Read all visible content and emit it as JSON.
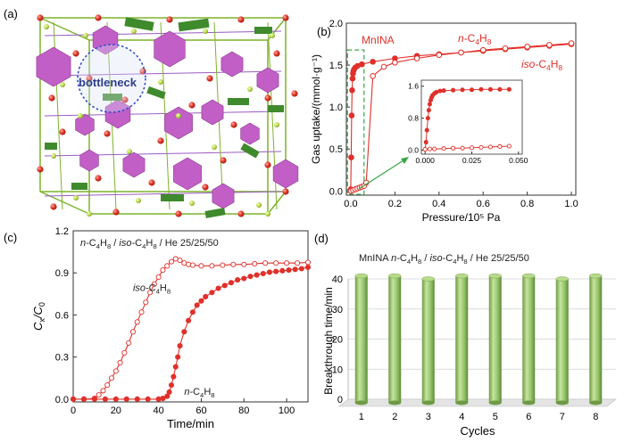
{
  "panels": {
    "a": {
      "label": "(a)",
      "annotation": "bottleneck",
      "colors": {
        "hexagon": "#c25fc6",
        "green_plate": "#3f8a2c",
        "node": "#b8d94a",
        "oxygen": "#e23a2a",
        "circle": "#2b4fc9"
      }
    },
    "b": {
      "label": "(b)"
    },
    "c": {
      "label": "(c)"
    },
    "d": {
      "label": "(d)"
    }
  },
  "chart_data": [
    {
      "id": "b",
      "type": "line",
      "xlabel": "Pressure/10⁵ Pa",
      "ylabel": "Gas uptake/(mmol·g⁻¹)",
      "xlim": [
        -0.02,
        1.02
      ],
      "ylim": [
        -0.05,
        2.0
      ],
      "xticks": [
        "0.0",
        "0.2",
        "0.4",
        "0.6",
        "0.8",
        "1.0"
      ],
      "yticks": [
        "0.0",
        "0.5",
        "1.0",
        "1.5",
        "2.0"
      ],
      "title_label": "MnINA",
      "series": [
        {
          "name": "n-C4H8",
          "color": "#e0302a",
          "marker": "filled",
          "x": [
            0.0,
            0.002,
            0.004,
            0.006,
            0.008,
            0.01,
            0.012,
            0.015,
            0.02,
            0.03,
            0.05,
            0.1,
            0.2,
            0.3,
            0.4,
            0.5,
            0.6,
            0.7,
            0.8,
            0.9,
            1.0
          ],
          "y": [
            0.02,
            0.4,
            0.9,
            1.2,
            1.34,
            1.4,
            1.43,
            1.45,
            1.47,
            1.49,
            1.51,
            1.54,
            1.58,
            1.61,
            1.63,
            1.65,
            1.67,
            1.69,
            1.71,
            1.73,
            1.75
          ]
        },
        {
          "name": "iso-C4H8",
          "color": "#e0302a",
          "marker": "open",
          "x": [
            0.0,
            0.01,
            0.02,
            0.03,
            0.04,
            0.05,
            0.06,
            0.07,
            0.1,
            0.15,
            0.2,
            0.3,
            0.4,
            0.5,
            0.6,
            0.7,
            0.8,
            0.9,
            1.0
          ],
          "y": [
            0.0,
            0.01,
            0.02,
            0.03,
            0.04,
            0.05,
            0.06,
            0.1,
            1.37,
            1.48,
            1.53,
            1.58,
            1.62,
            1.65,
            1.68,
            1.7,
            1.72,
            1.74,
            1.76
          ]
        }
      ],
      "inset": {
        "xlim": [
          -0.002,
          0.052
        ],
        "ylim": [
          -0.1,
          1.75
        ],
        "xticks": [
          "0.000",
          "0.025",
          "0.050"
        ],
        "yticks": [
          "0.0",
          "0.8",
          "1.6"
        ],
        "series": [
          {
            "name": "n-C4H8",
            "marker": "filled",
            "x": [
              0.0,
              0.0005,
              0.001,
              0.0015,
              0.002,
              0.0025,
              0.003,
              0.0035,
              0.004,
              0.005,
              0.006,
              0.008,
              0.01,
              0.015,
              0.02,
              0.025,
              0.03,
              0.035,
              0.04,
              0.045
            ],
            "y": [
              0.02,
              0.2,
              0.5,
              0.8,
              1.0,
              1.15,
              1.25,
              1.32,
              1.37,
              1.42,
              1.45,
              1.48,
              1.49,
              1.5,
              1.51,
              1.51,
              1.52,
              1.52,
              1.52,
              1.52
            ]
          },
          {
            "name": "iso-C4H8",
            "marker": "open",
            "x": [
              0.0,
              0.0025,
              0.005,
              0.01,
              0.015,
              0.02,
              0.025,
              0.03,
              0.035,
              0.04,
              0.045
            ],
            "y": [
              0.02,
              0.03,
              0.03,
              0.04,
              0.05,
              0.05,
              0.06,
              0.07,
              0.08,
              0.09,
              0.1
            ]
          }
        ]
      }
    },
    {
      "id": "c",
      "type": "line",
      "xlabel": "Time/min",
      "ylabel": "Cx/C0",
      "xlim": [
        0,
        110
      ],
      "ylim": [
        -0.02,
        1.2
      ],
      "xticks": [
        "0",
        "20",
        "40",
        "60",
        "80",
        "100"
      ],
      "yticks": [
        "0.0",
        "0.3",
        "0.6",
        "0.9",
        "1.2"
      ],
      "header": "n-C4H8 / iso-C4H8 / He      25/25/50",
      "series": [
        {
          "name": "iso-C4H8",
          "color": "#e0302a",
          "marker": "open",
          "x": [
            0,
            5,
            10,
            12,
            14,
            16,
            18,
            20,
            22,
            24,
            26,
            28,
            30,
            32,
            34,
            36,
            38,
            40,
            42,
            44,
            46,
            48,
            50,
            52,
            54,
            56,
            60,
            65,
            70,
            75,
            80,
            85,
            90,
            95,
            100,
            105,
            110
          ],
          "y": [
            0.0,
            0.0,
            0.005,
            0.03,
            0.06,
            0.1,
            0.15,
            0.2,
            0.26,
            0.33,
            0.4,
            0.48,
            0.55,
            0.62,
            0.69,
            0.76,
            0.82,
            0.87,
            0.92,
            0.95,
            0.98,
            1.0,
            0.99,
            0.97,
            0.96,
            0.955,
            0.95,
            0.95,
            0.955,
            0.96,
            0.96,
            0.965,
            0.97,
            0.97,
            0.97,
            0.97,
            0.975
          ]
        },
        {
          "name": "n-C4H8",
          "color": "#e0302a",
          "marker": "filled",
          "x": [
            0,
            5,
            10,
            15,
            20,
            25,
            30,
            35,
            40,
            42,
            44,
            45,
            46,
            47,
            48,
            49,
            50,
            52,
            54,
            56,
            58,
            60,
            62,
            65,
            68,
            71,
            74,
            77,
            80,
            83,
            86,
            89,
            92,
            95,
            98,
            101,
            104,
            107,
            110
          ],
          "y": [
            0.0,
            0.0,
            0.0,
            0.0,
            0.0,
            0.0,
            0.0,
            0.0,
            0.0,
            0.005,
            0.02,
            0.05,
            0.1,
            0.16,
            0.23,
            0.3,
            0.38,
            0.48,
            0.56,
            0.62,
            0.67,
            0.7,
            0.73,
            0.76,
            0.79,
            0.81,
            0.83,
            0.85,
            0.86,
            0.875,
            0.885,
            0.895,
            0.905,
            0.91,
            0.915,
            0.92,
            0.925,
            0.93,
            0.94
          ]
        }
      ],
      "annotations": [
        {
          "text": "iso-C4H8",
          "x": 28,
          "y": 0.77
        },
        {
          "text": "n-C4H8",
          "x": 52,
          "y": 0.03
        }
      ]
    },
    {
      "id": "d",
      "type": "bar",
      "xlabel": "Cycles",
      "ylabel": "Breakthrough time/min",
      "categories": [
        "1",
        "2",
        "3",
        "4",
        "5",
        "6",
        "7",
        "8"
      ],
      "values": [
        41,
        41,
        40,
        41,
        41,
        41,
        40,
        41
      ],
      "ylim": [
        0,
        40
      ],
      "yticks": [
        "0",
        "10",
        "20",
        "30",
        "40"
      ],
      "header": "MnINA      n-C4H8 / iso-C4H8 / He      25/25/50",
      "bar_color": "#93c26b"
    }
  ]
}
